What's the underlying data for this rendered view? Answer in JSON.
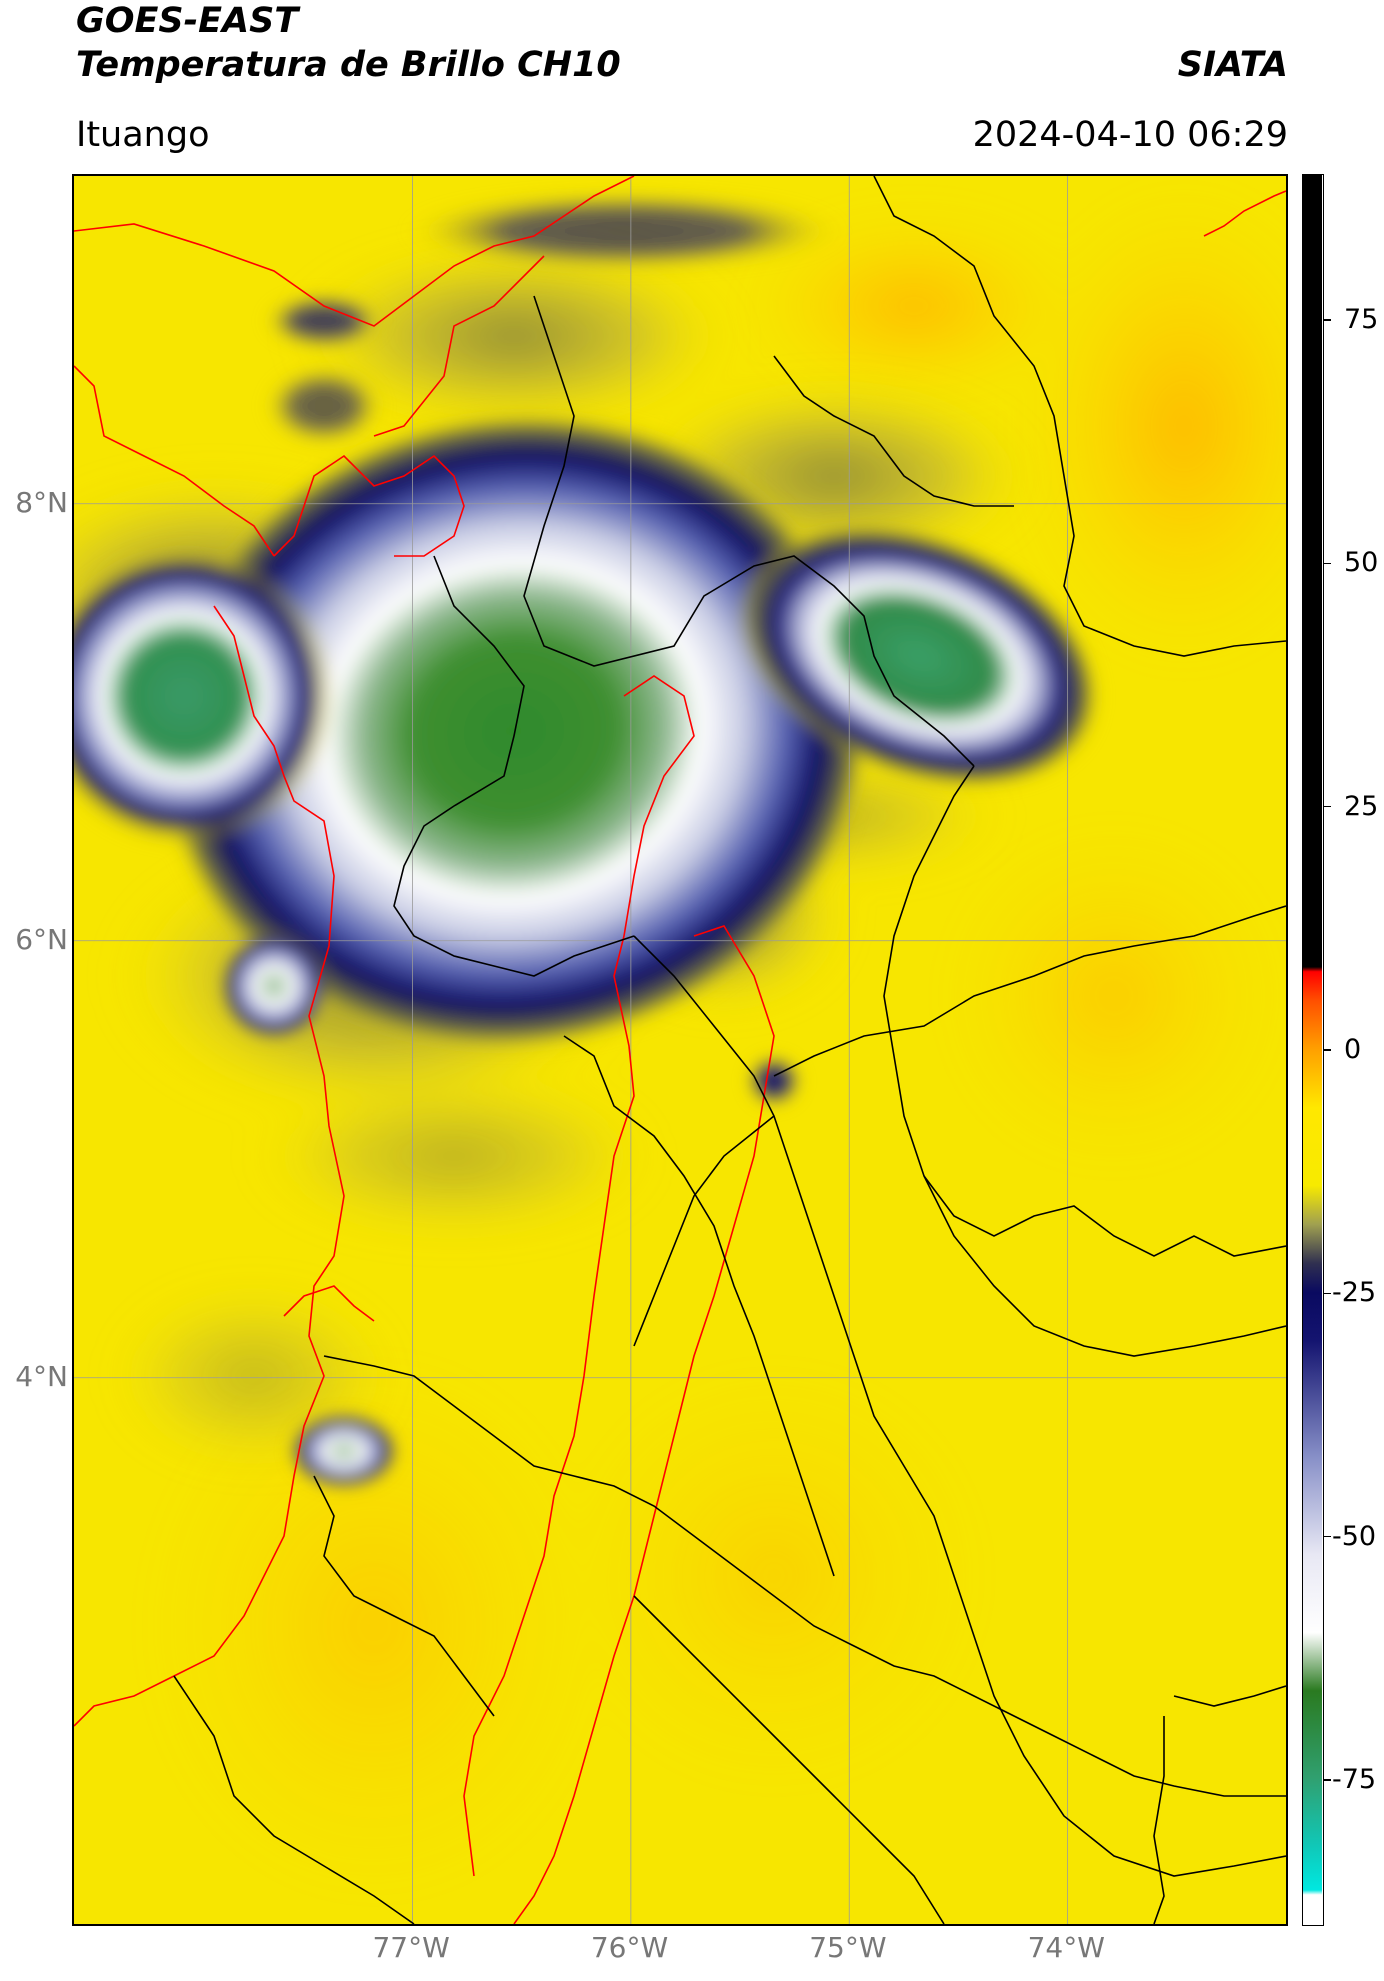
{
  "header": {
    "satellite": "GOES-EAST",
    "product": "Temperatura de Brillo CH10",
    "org": "SIATA",
    "region": "Ituango",
    "timestamp": "2024-04-10 06:29"
  },
  "map": {
    "lat_labels": [
      "8°N",
      "6°N",
      "4°N"
    ],
    "lon_labels": [
      "77°W",
      "76°W",
      "75°W",
      "74°W"
    ],
    "lat_values": [
      8,
      6,
      4
    ],
    "lon_values": [
      -77,
      -76,
      -75,
      -74
    ],
    "lon_range": [
      -78.55,
      -73.0
    ],
    "lat_range": [
      1.5,
      9.5
    ],
    "background_color": "#f7e600",
    "gridline_color": "#9a9a9a",
    "coastline_color": "#ff0000",
    "border_color": "#000000"
  },
  "colorbar": {
    "tick_labels": [
      "75",
      "50",
      "25",
      "0",
      "-25",
      "-50",
      "-75"
    ],
    "tick_values": [
      75,
      50,
      25,
      0,
      -25,
      -50,
      -75
    ],
    "range": [
      -90,
      90
    ],
    "stops": [
      {
        "v": -90,
        "c": "#ffffff"
      },
      {
        "v": -87,
        "c": "#ffffff"
      },
      {
        "v": -86.5,
        "c": "#00e8e0"
      },
      {
        "v": -82,
        "c": "#10c8b8"
      },
      {
        "v": -75,
        "c": "#30a070"
      },
      {
        "v": -66,
        "c": "#2a7a20"
      },
      {
        "v": -60,
        "c": "#ffffff"
      },
      {
        "v": -52,
        "c": "#e8e8f4"
      },
      {
        "v": -42,
        "c": "#8890c8"
      },
      {
        "v": -30,
        "c": "#141470"
      },
      {
        "v": -25,
        "c": "#0a0a60"
      },
      {
        "v": -22,
        "c": "#303050"
      },
      {
        "v": -18,
        "c": "#a0a050"
      },
      {
        "v": -14,
        "c": "#f7ea00"
      },
      {
        "v": -6,
        "c": "#ffe800"
      },
      {
        "v": 0,
        "c": "#ffa000"
      },
      {
        "v": 5,
        "c": "#ff5000"
      },
      {
        "v": 8,
        "c": "#ff0000"
      },
      {
        "v": 8.5,
        "c": "#000000"
      },
      {
        "v": 90,
        "c": "#000000"
      }
    ]
  }
}
